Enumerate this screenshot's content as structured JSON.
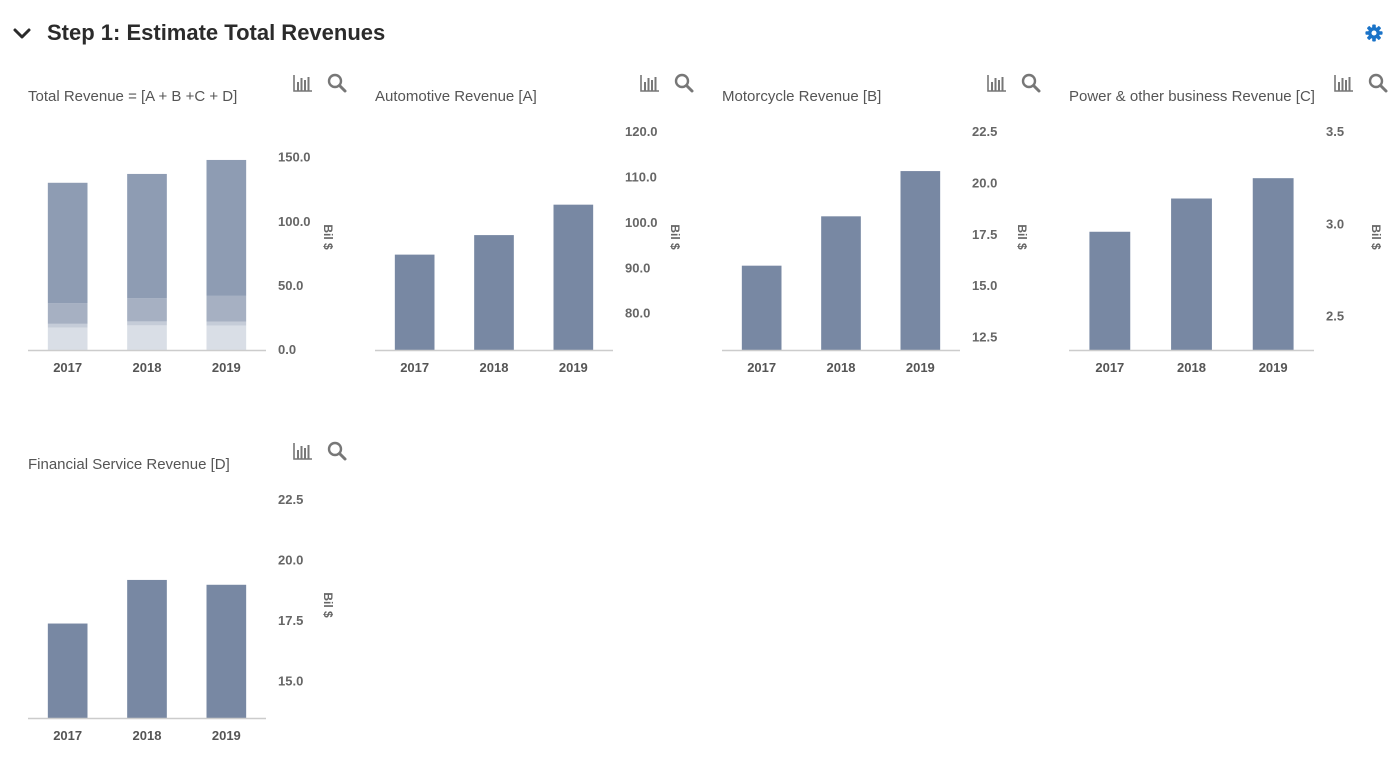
{
  "header": {
    "title": "Step 1: Estimate Total Revenues",
    "collapse_icon": "chevron-down-icon",
    "settings_icon": "gear-icon",
    "accent_color": "#1a73c8"
  },
  "toolbar_icons": [
    "bar-chart-icon",
    "search-icon"
  ],
  "colors": {
    "bar": "#7888a3",
    "stack": [
      "#d9dee6",
      "#c5ccd8",
      "#a6b0c2",
      "#8e9cb3"
    ],
    "axis": "#cccccc"
  },
  "chart_data": [
    {
      "type": "bar",
      "stacked": true,
      "title": "Total Revenue = [A + B +C + D]",
      "ylabel": "Bil $",
      "categories": [
        "2017",
        "2018",
        "2019"
      ],
      "ylim": [
        0,
        170
      ],
      "yticks": [
        "0.0",
        "50.0",
        "100.0",
        "150.0"
      ],
      "series": [
        {
          "values": [
            17.4,
            19.2,
            19.0
          ]
        },
        {
          "values": [
            3.0,
            3.1,
            3.2
          ]
        },
        {
          "values": [
            16.0,
            18.0,
            20.0
          ]
        },
        {
          "values": [
            94.0,
            97.0,
            106.0
          ]
        }
      ]
    },
    {
      "type": "bar",
      "title": "Automotive Revenue [A]",
      "ylabel": "Bil $",
      "categories": [
        "2017",
        "2018",
        "2019"
      ],
      "ylim": [
        72,
        120
      ],
      "yticks": [
        "80.0",
        "90.0",
        "100.0",
        "110.0",
        "120.0"
      ],
      "values": [
        93.0,
        97.3,
        104.0
      ]
    },
    {
      "type": "bar",
      "title": "Motorcycle Revenue [B]",
      "ylabel": "Bil $",
      "categories": [
        "2017",
        "2018",
        "2019"
      ],
      "ylim": [
        11.9,
        22.5
      ],
      "yticks": [
        "12.5",
        "15.0",
        "17.5",
        "20.0",
        "22.5"
      ],
      "values": [
        16.0,
        18.4,
        20.6
      ]
    },
    {
      "type": "bar",
      "title": "Power & other business Revenue [C]",
      "ylabel": "Bil $",
      "categories": [
        "2017",
        "2018",
        "2019"
      ],
      "ylim": [
        2.32,
        3.5
      ],
      "yticks": [
        "2.5",
        "3.0",
        "3.5"
      ],
      "values": [
        2.96,
        3.14,
        3.25
      ]
    },
    {
      "type": "bar",
      "title": "Financial Service Revenue [D]",
      "ylabel": "Bil $",
      "categories": [
        "2017",
        "2018",
        "2019"
      ],
      "ylim": [
        13.5,
        22.5
      ],
      "yticks": [
        "15.0",
        "17.5",
        "20.0",
        "22.5"
      ],
      "values": [
        17.4,
        19.2,
        19.0
      ]
    }
  ]
}
